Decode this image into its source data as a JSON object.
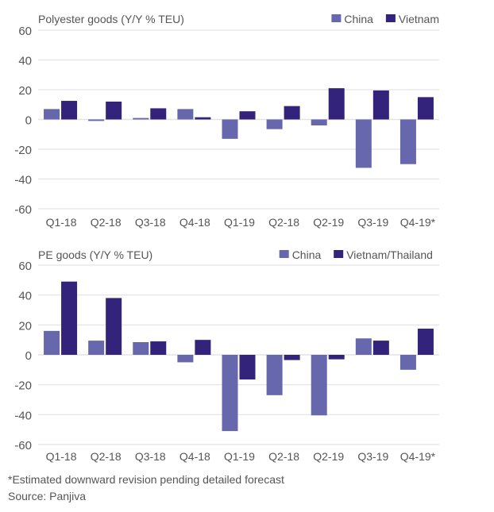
{
  "chart_data": [
    {
      "type": "bar",
      "title": "Polyester goods (Y/Y % TEU)",
      "xlabel": "",
      "ylabel": "",
      "ylim": [
        -60,
        60
      ],
      "yticks": [
        60,
        40,
        20,
        0,
        -20,
        -40,
        -60
      ],
      "grid": true,
      "legend_position": "top-right",
      "categories": [
        "Q1-18",
        "Q2-18",
        "Q3-18",
        "Q4-18",
        "Q1-19",
        "Q2-18",
        "Q2-19",
        "Q3-19",
        "Q4-19*"
      ],
      "series": [
        {
          "name": "China",
          "color": "#6767ad",
          "values": [
            7,
            -1,
            1,
            7,
            -13,
            -6.5,
            -4,
            -32.5,
            -30
          ]
        },
        {
          "name": "Vietnam",
          "color": "#33237a",
          "values": [
            12.5,
            12,
            7.5,
            1.5,
            5.5,
            9,
            21,
            19.5,
            15
          ]
        }
      ]
    },
    {
      "type": "bar",
      "title": "PE goods (Y/Y % TEU)",
      "xlabel": "",
      "ylabel": "",
      "ylim": [
        -60,
        60
      ],
      "yticks": [
        60,
        40,
        20,
        0,
        -20,
        -40,
        -60
      ],
      "grid": true,
      "legend_position": "top-right",
      "categories": [
        "Q1-18",
        "Q2-18",
        "Q3-18",
        "Q4-18",
        "Q1-19",
        "Q2-18",
        "Q2-19",
        "Q3-19",
        "Q4-19*"
      ],
      "series": [
        {
          "name": "China",
          "color": "#6767ad",
          "values": [
            16,
            9.5,
            8.5,
            -5,
            -51,
            -27,
            -40.5,
            11,
            -10
          ]
        },
        {
          "name": "Vietnam/Thailand",
          "color": "#33237a",
          "values": [
            49,
            38,
            9,
            10,
            -16.5,
            -3.5,
            -3,
            9.5,
            17.5
          ]
        }
      ]
    }
  ],
  "footnotes": {
    "note": "*Estimated downward revision pending detailed forecast",
    "source": "Source: Panjiva"
  },
  "colors": {
    "grid": "#e3e3e3",
    "text": "#555555"
  }
}
